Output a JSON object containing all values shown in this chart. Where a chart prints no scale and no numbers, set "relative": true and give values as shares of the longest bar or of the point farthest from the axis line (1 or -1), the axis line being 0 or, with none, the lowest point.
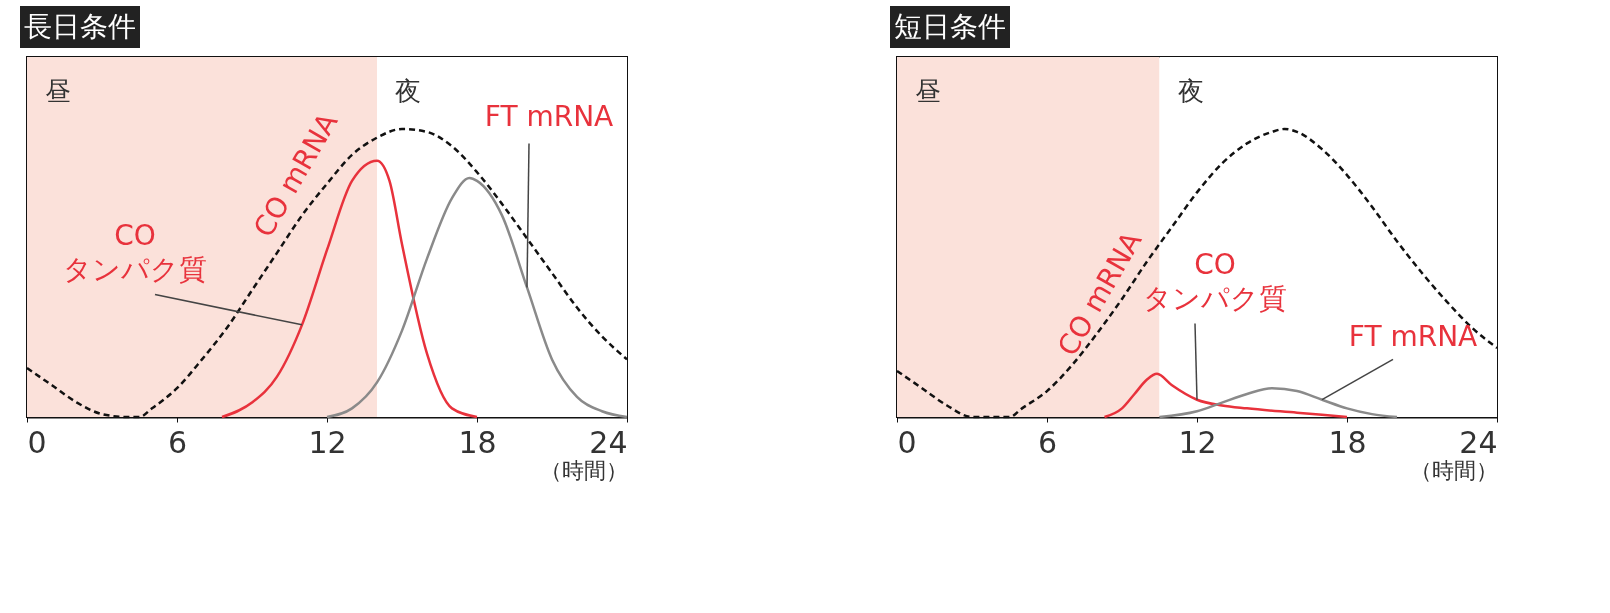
{
  "chart_data": [
    {
      "type": "line",
      "title": "長日条件",
      "xlabel": "（時間）",
      "relative": true,
      "xlim": [
        0,
        24
      ],
      "xticks": [
        0,
        6,
        12,
        18,
        24
      ],
      "grid": false,
      "bands": [
        {
          "axis": "x",
          "from": 0,
          "to": 14,
          "label": "昼",
          "color": "#fbe1da"
        },
        {
          "axis": "x",
          "from": 14,
          "to": 24,
          "label": "夜",
          "color": "#ffffff"
        }
      ],
      "series": [
        {
          "name": "CO mRNA",
          "color": "#111111",
          "line_style": "dashed",
          "x": [
            0,
            1,
            2,
            3,
            4,
            4.5,
            5,
            6,
            7,
            8,
            9,
            10,
            11,
            12,
            13,
            14,
            15,
            16,
            17,
            18,
            19,
            20,
            21,
            22,
            23,
            24
          ],
          "values": [
            0.17,
            0.11,
            0.05,
            0.01,
            0,
            0,
            0.03,
            0.1,
            0.2,
            0.31,
            0.44,
            0.57,
            0.7,
            0.81,
            0.91,
            0.97,
            1.0,
            0.99,
            0.94,
            0.85,
            0.74,
            0.62,
            0.5,
            0.38,
            0.28,
            0.2
          ]
        },
        {
          "name": "CO タンパク質",
          "color": "#e8323c",
          "line_style": "solid",
          "x": [
            7.8,
            9,
            10,
            11,
            12,
            13,
            14,
            14.5,
            15,
            16,
            17,
            18
          ],
          "values": [
            0,
            0.05,
            0.14,
            0.32,
            0.58,
            0.82,
            0.89,
            0.82,
            0.6,
            0.22,
            0.03,
            0
          ]
        },
        {
          "name": "FT mRNA",
          "color": "#8a8a8a",
          "line_style": "solid",
          "x": [
            12,
            13,
            14,
            15,
            16,
            17,
            17.7,
            18,
            19,
            20,
            21,
            22,
            23,
            24
          ],
          "values": [
            0,
            0.03,
            0.12,
            0.3,
            0.55,
            0.76,
            0.83,
            0.82,
            0.7,
            0.45,
            0.2,
            0.07,
            0.02,
            0
          ]
        }
      ]
    },
    {
      "type": "line",
      "title": "短日条件",
      "xlabel": "（時間）",
      "relative": true,
      "xlim": [
        0,
        24
      ],
      "xticks": [
        0,
        6,
        12,
        18,
        24
      ],
      "grid": false,
      "bands": [
        {
          "axis": "x",
          "from": 0,
          "to": 10.5,
          "label": "昼",
          "color": "#fbe1da"
        },
        {
          "axis": "x",
          "from": 10.5,
          "to": 24,
          "label": "夜",
          "color": "#ffffff"
        }
      ],
      "series": [
        {
          "name": "CO mRNA",
          "color": "#111111",
          "line_style": "dashed",
          "x": [
            0,
            1,
            2,
            3,
            4.5,
            5,
            6,
            7,
            8,
            9,
            10,
            11,
            12,
            13,
            14,
            15,
            15.5,
            16,
            17,
            18,
            19,
            20,
            21,
            22,
            23,
            24
          ],
          "values": [
            0.16,
            0.1,
            0.04,
            0,
            0,
            0.03,
            0.09,
            0.18,
            0.29,
            0.41,
            0.54,
            0.66,
            0.78,
            0.88,
            0.95,
            0.99,
            1.0,
            0.99,
            0.93,
            0.84,
            0.73,
            0.61,
            0.5,
            0.4,
            0.31,
            0.24
          ]
        },
        {
          "name": "CO タンパク質",
          "color": "#e8323c",
          "line_style": "solid",
          "x": [
            8.3,
            9,
            9.5,
            10,
            10.4,
            11,
            12,
            13,
            14,
            16,
            18
          ],
          "values": [
            0,
            0.03,
            0.08,
            0.13,
            0.15,
            0.11,
            0.06,
            0.04,
            0.03,
            0.015,
            0
          ]
        },
        {
          "name": "FT mRNA",
          "color": "#8a8a8a",
          "line_style": "solid",
          "x": [
            10.5,
            12,
            13,
            14,
            15,
            16,
            17,
            18,
            19,
            20
          ],
          "values": [
            0,
            0.02,
            0.05,
            0.08,
            0.1,
            0.09,
            0.06,
            0.03,
            0.01,
            0
          ]
        }
      ]
    }
  ]
}
